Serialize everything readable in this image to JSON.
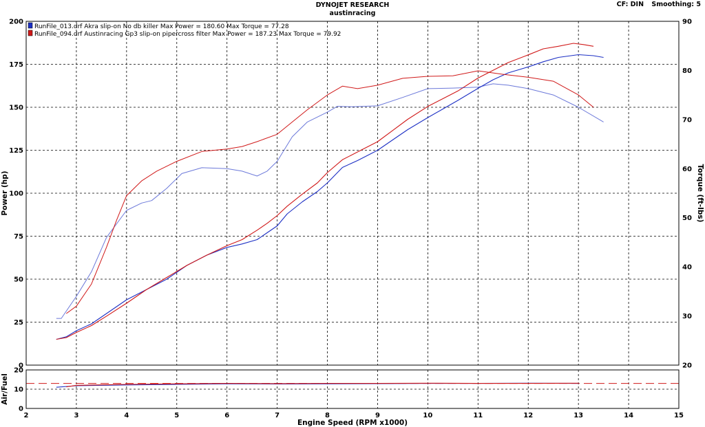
{
  "header": {
    "title": "DYNOJET RESEARCH",
    "subtitle": "austinracing",
    "cf": "CF: DIN",
    "smoothing": "Smoothing: 5"
  },
  "colors": {
    "run1": "#1c2fc4",
    "run2": "#d01818",
    "grid": "#000000",
    "afr_ref": "#d01818"
  },
  "chart_data": [
    {
      "type": "line",
      "title": "DYNOJET RESEARCH",
      "subtitle": "austinracing",
      "xlabel": "Engine Speed (RPM x1000)",
      "ylabel": "Power (hp)",
      "y2label": "Torque (ft-lbs)",
      "xlim": [
        2,
        15
      ],
      "ylim": [
        0,
        200
      ],
      "y2lim": [
        20,
        90
      ],
      "xticks": [
        2,
        3,
        4,
        5,
        6,
        7,
        8,
        9,
        10,
        11,
        12,
        13,
        14,
        15
      ],
      "yticks": [
        0,
        25,
        50,
        75,
        100,
        125,
        150,
        175,
        200
      ],
      "y2ticks": [
        20,
        30,
        40,
        50,
        60,
        70,
        80,
        90
      ],
      "grid": true,
      "legend_position": "top-left",
      "legend": [
        "RunFile_013.drf Akra slip-on No db killer Max Power = 180.60     Max Torque = 77.28",
        "RunFile_094.drf Austinracing Gp3 slip-on pipercross filter Max Power = 187.23     Max Torque = 79.92"
      ],
      "series": [
        {
          "name": "RunFile_013.drf Akra slip-on No db killer",
          "measure": "Power (hp)",
          "axis": "left",
          "color": "#1c2fc4",
          "x": [
            2.6,
            2.8,
            3.0,
            3.3,
            3.6,
            4.0,
            4.4,
            4.8,
            5.2,
            5.6,
            6.0,
            6.3,
            6.6,
            6.8,
            7.0,
            7.2,
            7.5,
            7.8,
            8.0,
            8.3,
            8.6,
            9.0,
            9.3,
            9.6,
            10.0,
            10.3,
            10.6,
            11.0,
            11.3,
            11.6,
            12.0,
            12.3,
            12.6,
            13.0,
            13.3,
            13.5
          ],
          "y": [
            15,
            16.5,
            20,
            24,
            30,
            38,
            44,
            50,
            58,
            64,
            68.5,
            70.5,
            73,
            77,
            81,
            88,
            95,
            101,
            106,
            115,
            119,
            125,
            131,
            137,
            144,
            149,
            154,
            161,
            166,
            170,
            173.5,
            176.5,
            179,
            180.6,
            180,
            179
          ]
        },
        {
          "name": "RunFile_094.drf Austinracing Gp3 slip-on pipercross filter",
          "measure": "Power (hp)",
          "axis": "left",
          "color": "#d01818",
          "x": [
            2.6,
            2.8,
            3.0,
            3.3,
            3.6,
            4.0,
            4.4,
            4.8,
            5.2,
            5.6,
            6.0,
            6.3,
            6.6,
            6.8,
            7.0,
            7.2,
            7.5,
            7.8,
            8.0,
            8.3,
            8.6,
            9.0,
            9.3,
            9.6,
            10.0,
            10.3,
            10.6,
            11.0,
            11.3,
            11.6,
            12.0,
            12.3,
            12.6,
            12.9,
            13.1,
            13.3
          ],
          "y": [
            15,
            16,
            19,
            23,
            28.5,
            36,
            44,
            51,
            58,
            64,
            69.5,
            73,
            78.5,
            82.5,
            87,
            92.5,
            99.5,
            106,
            112,
            119.5,
            124,
            130,
            136.5,
            143,
            150.5,
            155,
            159.5,
            167,
            171.5,
            176,
            180.5,
            184,
            185.5,
            187.2,
            186.5,
            185.5
          ]
        },
        {
          "name": "RunFile_013.drf Akra slip-on No db killer",
          "measure": "Torque (ft-lbs)",
          "axis": "right",
          "color": "#1c2fc4",
          "x": [
            2.6,
            2.7,
            3.0,
            3.3,
            3.6,
            4.0,
            4.3,
            4.5,
            4.8,
            5.1,
            5.5,
            6.0,
            6.3,
            6.6,
            6.8,
            7.0,
            7.3,
            7.6,
            8.0,
            8.2,
            8.5,
            9.0,
            9.5,
            10.0,
            10.5,
            11.0,
            11.3,
            11.6,
            12.0,
            12.5,
            13.0,
            13.5
          ],
          "y": [
            29.5,
            29.5,
            34,
            39,
            46,
            51.5,
            53,
            53.5,
            56,
            59,
            60.2,
            60,
            59.5,
            58.5,
            59.5,
            61.5,
            66.5,
            69.5,
            71.5,
            72.7,
            72.6,
            72.8,
            74.5,
            76.3,
            76.4,
            76.6,
            77.28,
            77,
            76.3,
            75,
            72.5,
            69.5
          ]
        },
        {
          "name": "RunFile_094.drf Austinracing Gp3 slip-on pipercross filter",
          "measure": "Torque (ft-lbs)",
          "axis": "right",
          "color": "#d01818",
          "x": [
            2.8,
            3.0,
            3.3,
            3.6,
            3.8,
            4.0,
            4.3,
            4.6,
            5.0,
            5.5,
            6.0,
            6.3,
            6.6,
            7.0,
            7.3,
            7.6,
            8.0,
            8.3,
            8.6,
            9.0,
            9.5,
            10.0,
            10.5,
            11.0,
            11.5,
            12.0,
            12.5,
            13.0,
            13.3
          ],
          "y": [
            30.5,
            32,
            36.5,
            44,
            49.5,
            54.5,
            57.5,
            59.5,
            61.5,
            63.5,
            64,
            64.5,
            65.5,
            67,
            69.5,
            72,
            75,
            76.8,
            76.3,
            77,
            78.4,
            78.8,
            78.9,
            79.92,
            79.2,
            78.6,
            77.8,
            75,
            72.5
          ]
        }
      ]
    },
    {
      "type": "line",
      "xlabel": "Engine Speed (RPM x1000)",
      "ylabel": "Air/Fuel",
      "xlim": [
        2,
        15
      ],
      "ylim": [
        0,
        20
      ],
      "yticks": [
        0,
        10,
        20
      ],
      "grid": true,
      "reference_line": {
        "value": 13,
        "style": "dashed",
        "color": "#d01818"
      },
      "series": [
        {
          "name": "RunFile_013.drf Akra slip-on No db killer",
          "color": "#1c2fc4",
          "x": [
            2.6,
            3.0,
            4.0,
            5.0,
            6.0,
            7.0,
            8.0,
            9.0,
            10.0,
            11.0,
            12.0,
            13.0
          ],
          "y": [
            11,
            11.8,
            12.2,
            12.5,
            12.8,
            12.7,
            12.8,
            12.9,
            13.0,
            13.0,
            13.1,
            13.0
          ]
        },
        {
          "name": "RunFile_094.drf Austinracing Gp3 slip-on pipercross filter",
          "color": "#d01818",
          "x": [
            2.8,
            3.0,
            4.0,
            5.0,
            6.0,
            7.0,
            8.0,
            9.0,
            10.0,
            11.0,
            12.0,
            13.0
          ],
          "y": [
            11.2,
            12.0,
            12.5,
            12.8,
            13.0,
            12.9,
            13.0,
            13.0,
            13.1,
            13.0,
            13.0,
            13.1
          ]
        }
      ]
    }
  ]
}
